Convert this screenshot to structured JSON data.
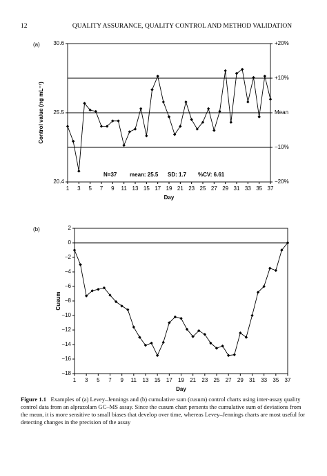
{
  "header": {
    "page_number": "12",
    "running_title": "QUALITY ASSURANCE, QUALITY CONTROL AND METHOD VALIDATION"
  },
  "chart_data": [
    {
      "type": "line",
      "panel_label": "(a)",
      "x_label": "Day",
      "y_label": "Control value (ng mL⁻¹)",
      "x": [
        1,
        2,
        3,
        4,
        5,
        6,
        7,
        8,
        9,
        10,
        11,
        12,
        13,
        14,
        15,
        16,
        17,
        18,
        19,
        20,
        21,
        22,
        23,
        24,
        25,
        26,
        27,
        28,
        29,
        30,
        31,
        32,
        33,
        34,
        35,
        36,
        37
      ],
      "values": [
        24.5,
        23.4,
        21.2,
        26.2,
        25.7,
        25.6,
        24.5,
        24.5,
        24.9,
        24.9,
        23.1,
        24.1,
        24.3,
        25.8,
        23.8,
        27.2,
        28.2,
        26.3,
        25.2,
        23.9,
        24.5,
        26.3,
        25.0,
        24.3,
        24.8,
        25.8,
        24.2,
        25.6,
        28.6,
        24.8,
        28.4,
        28.7,
        26.3,
        28.1,
        25.2,
        28.2,
        26.5
      ],
      "color": "#000000",
      "xlim": [
        1,
        37
      ],
      "xticks": [
        1,
        3,
        5,
        7,
        9,
        11,
        13,
        15,
        17,
        19,
        21,
        23,
        25,
        27,
        29,
        31,
        33,
        35,
        37
      ],
      "ylim": [
        20.4,
        30.6
      ],
      "yticks": [
        20.4,
        25.5,
        30.6
      ],
      "y2lim": [
        -20,
        20
      ],
      "y2ticks": [
        {
          "value": 20,
          "label": "+20%"
        },
        {
          "value": 10,
          "label": "+10%"
        },
        {
          "value": 0,
          "label": "Mean"
        },
        {
          "value": -10,
          "label": "−10%"
        },
        {
          "value": -20,
          "label": "−20%"
        }
      ],
      "y2_reference_lines": [
        10,
        0,
        -10
      ],
      "annotations": [
        "N=37",
        "mean: 25.5",
        "SD: 1.7",
        "%CV: 6.61"
      ]
    },
    {
      "type": "line",
      "panel_label": "(b)",
      "x_label": "Day",
      "y_label": "Cusum",
      "x": [
        1,
        2,
        3,
        4,
        5,
        6,
        7,
        8,
        9,
        10,
        11,
        12,
        13,
        14,
        15,
        16,
        17,
        18,
        19,
        20,
        21,
        22,
        23,
        24,
        25,
        26,
        27,
        28,
        29,
        30,
        31,
        32,
        33,
        34,
        35,
        36,
        37
      ],
      "values": [
        -1.0,
        -3.0,
        -7.3,
        -6.6,
        -6.4,
        -6.2,
        -7.2,
        -8.1,
        -8.7,
        -9.2,
        -11.6,
        -13.0,
        -14.1,
        -13.8,
        -15.5,
        -13.7,
        -11.0,
        -10.2,
        -10.4,
        -11.9,
        -12.9,
        -12.1,
        -12.6,
        -13.8,
        -14.5,
        -14.2,
        -15.5,
        -15.4,
        -12.4,
        -13.0,
        -10.0,
        -6.8,
        -6.0,
        -3.5,
        -3.8,
        -1.0,
        0.0
      ],
      "color": "#000000",
      "xlim": [
        1,
        37
      ],
      "xticks": [
        1,
        3,
        5,
        7,
        9,
        11,
        13,
        15,
        17,
        19,
        21,
        23,
        25,
        27,
        29,
        31,
        33,
        35,
        37
      ],
      "ylim": [
        -18,
        2
      ],
      "yticks": [
        {
          "value": -18,
          "label": "−18"
        },
        {
          "value": -16,
          "label": "−16"
        },
        {
          "value": -14,
          "label": "−14"
        },
        {
          "value": -12,
          "label": "−12"
        },
        {
          "value": -10,
          "label": "−10"
        },
        {
          "value": -8,
          "label": "−8"
        },
        {
          "value": -6,
          "label": "−6"
        },
        {
          "value": -4,
          "label": "−4"
        },
        {
          "value": -2,
          "label": "−2"
        },
        0,
        2
      ],
      "reference_lines": [
        0
      ]
    }
  ],
  "caption": {
    "label": "Figure 1.1",
    "text": "Examples of (a) Levey–Jennings and (b) cumulative sum (cusum) control charts using inter-assay quality control data from an alprazolam GC–MS assay. Since the cusum chart persents the cumulative sum of deviations from the mean, it is more sensitive to small biases that develop over time, whereas Levey–Jennings charts are most useful for detecting changes in the precision of the assay"
  }
}
